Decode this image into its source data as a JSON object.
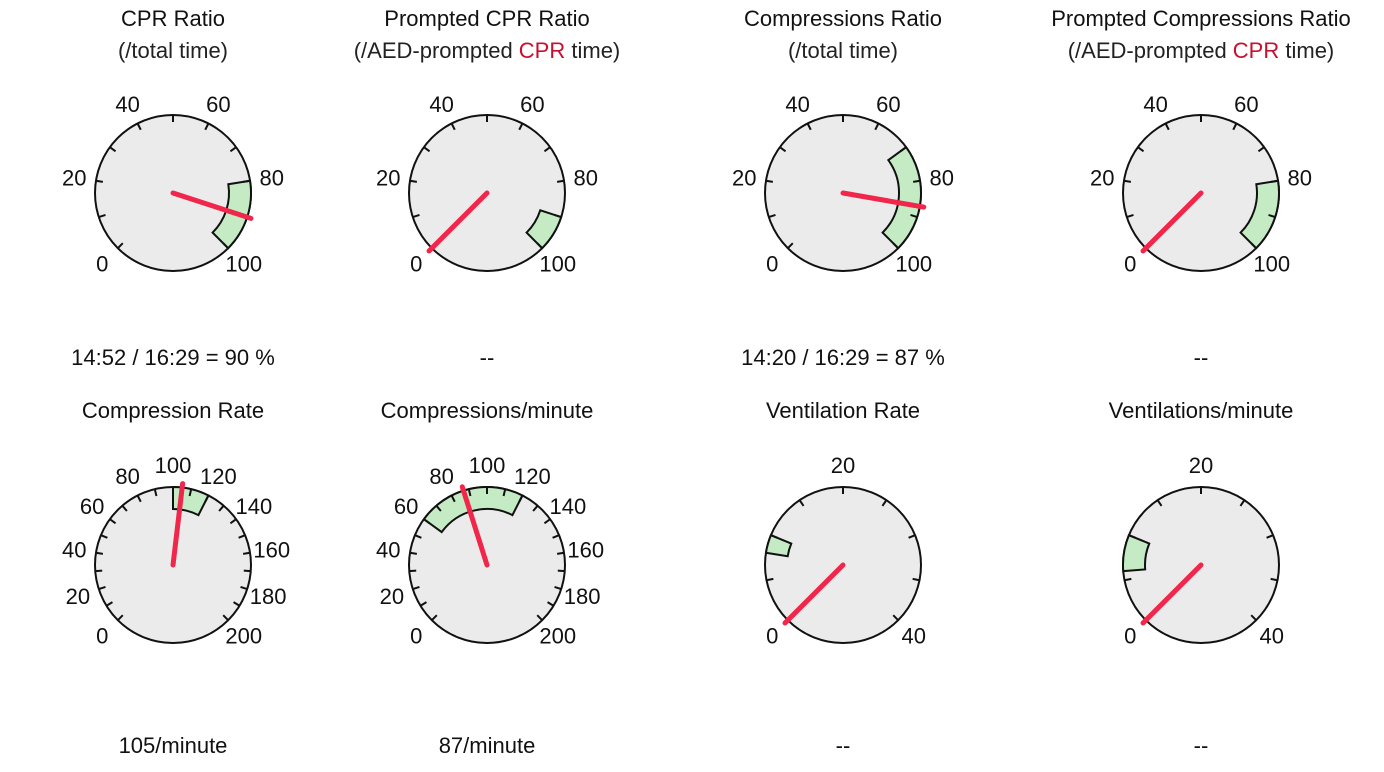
{
  "gauges": [
    {
      "title": "CPR Ratio",
      "subtitle_parts": [
        "(/total time)"
      ],
      "value_text": "14:52 / 16:29 = 90 %",
      "chart_data": {
        "type": "gauge",
        "min": 0,
        "max": 100,
        "tick_labels": [
          "0",
          "20",
          "40",
          "60",
          "80",
          "100"
        ],
        "target_range": [
          80,
          100
        ],
        "value": 90
      }
    },
    {
      "title": "Prompted CPR Ratio",
      "subtitle_parts": [
        "(/AED-prompted ",
        "CPR",
        " time)"
      ],
      "value_text": "--",
      "chart_data": {
        "type": "gauge",
        "min": 0,
        "max": 100,
        "tick_labels": [
          "0",
          "20",
          "40",
          "60",
          "80",
          "100"
        ],
        "target_range": [
          90,
          100
        ],
        "value": null
      }
    },
    {
      "title": "Compressions Ratio",
      "subtitle_parts": [
        "(/total time)"
      ],
      "value_text": "14:20 / 16:29 = 87 %",
      "chart_data": {
        "type": "gauge",
        "min": 0,
        "max": 100,
        "tick_labels": [
          "0",
          "20",
          "40",
          "60",
          "80",
          "100"
        ],
        "target_range": [
          70,
          100
        ],
        "value": 87
      }
    },
    {
      "title": "Prompted Compressions Ratio",
      "subtitle_parts": [
        "(/AED-prompted ",
        "CPR",
        " time)"
      ],
      "value_text": "--",
      "chart_data": {
        "type": "gauge",
        "min": 0,
        "max": 100,
        "tick_labels": [
          "0",
          "20",
          "40",
          "60",
          "80",
          "100"
        ],
        "target_range": [
          80,
          100
        ],
        "value": null
      }
    },
    {
      "title": "Compression Rate",
      "subtitle_parts": [],
      "value_text": "105/minute",
      "chart_data": {
        "type": "gauge",
        "min": 0,
        "max": 200,
        "tick_labels": [
          "0",
          "20",
          "40",
          "60",
          "80",
          "100",
          "120",
          "140",
          "160",
          "180",
          "200"
        ],
        "target_range": [
          100,
          120
        ],
        "value": 105
      }
    },
    {
      "title": "Compressions/minute",
      "subtitle_parts": [],
      "value_text": "87/minute",
      "chart_data": {
        "type": "gauge",
        "min": 0,
        "max": 200,
        "tick_labels": [
          "0",
          "20",
          "40",
          "60",
          "80",
          "100",
          "120",
          "140",
          "160",
          "180",
          "200"
        ],
        "target_range": [
          60,
          120
        ],
        "value": 87
      }
    },
    {
      "title": "Ventilation Rate",
      "subtitle_parts": [],
      "value_text": "--",
      "chart_data": {
        "type": "gauge",
        "min": 0,
        "max": 40,
        "tick_labels": [
          "0",
          "20",
          "40"
        ],
        "target_range": [
          8,
          10
        ],
        "value": null
      }
    },
    {
      "title": "Ventilations/minute",
      "subtitle_parts": [],
      "value_text": "--",
      "chart_data": {
        "type": "gauge",
        "min": 0,
        "max": 40,
        "tick_labels": [
          "0",
          "20",
          "40"
        ],
        "target_range": [
          6,
          10
        ],
        "value": null
      }
    }
  ],
  "colors": {
    "dial_fill": "#ebebeb",
    "dial_stroke": "#111111",
    "target_fill": "#c5ebc5",
    "needle": "#f0264b",
    "subtitle_accent": "#c8102e"
  }
}
